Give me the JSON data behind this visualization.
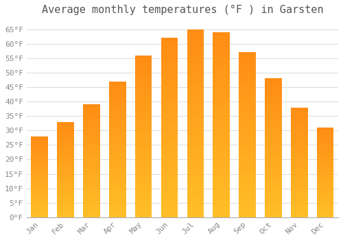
{
  "title": "Average monthly temperatures (°F ) in Garsten",
  "months": [
    "Jan",
    "Feb",
    "Mar",
    "Apr",
    "May",
    "Jun",
    "Jul",
    "Aug",
    "Sep",
    "Oct",
    "Nov",
    "Dec"
  ],
  "values": [
    28,
    33,
    39,
    47,
    56,
    62,
    65,
    64,
    57,
    48,
    38,
    31
  ],
  "bar_color_top": "#FFA500",
  "bar_color_bottom": "#FFD060",
  "background_color": "#FFFFFF",
  "grid_color": "#DDDDDD",
  "text_color": "#888888",
  "title_color": "#555555",
  "ylim": [
    0,
    68
  ],
  "yticks": [
    0,
    5,
    10,
    15,
    20,
    25,
    30,
    35,
    40,
    45,
    50,
    55,
    60,
    65
  ],
  "title_fontsize": 11,
  "tick_fontsize": 8,
  "font_family": "monospace",
  "bar_width": 0.65
}
